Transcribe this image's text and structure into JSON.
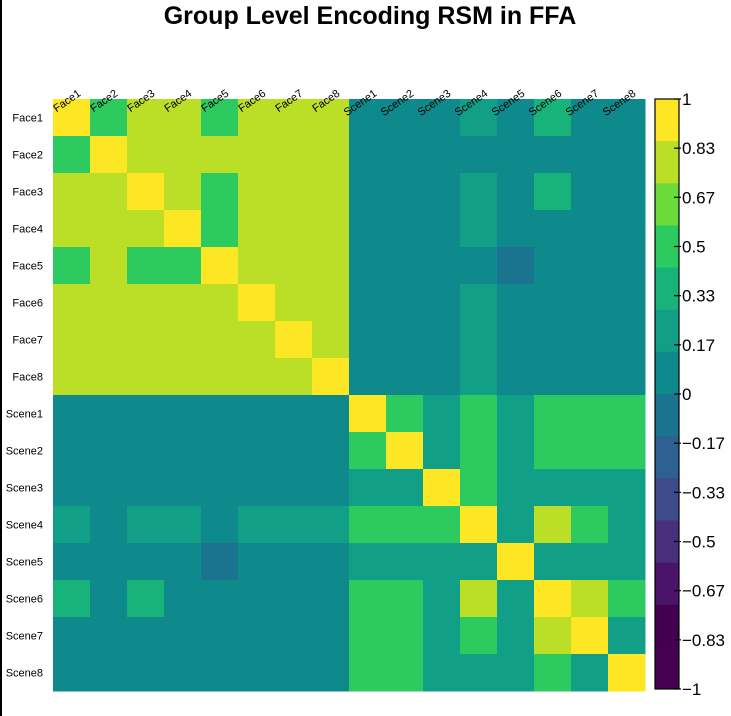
{
  "chart_data": {
    "type": "heatmap",
    "title": "Group Level Encoding RSM in FFA",
    "labels": [
      "Face1",
      "Face2",
      "Face3",
      "Face4",
      "Face5",
      "Face6",
      "Face7",
      "Face8",
      "Scene1",
      "Scene2",
      "Scene3",
      "Scene4",
      "Scene5",
      "Scene6",
      "Scene7",
      "Scene8"
    ],
    "matrix": [
      [
        1.0,
        0.55,
        0.75,
        0.75,
        0.55,
        0.75,
        0.75,
        0.75,
        0.08,
        0.05,
        0.1,
        0.25,
        0.08,
        0.3,
        0.05,
        0.1
      ],
      [
        0.55,
        1.0,
        0.75,
        0.75,
        0.75,
        0.75,
        0.75,
        0.75,
        0.08,
        0.05,
        0.05,
        0.1,
        0.03,
        0.1,
        0.1,
        0.05
      ],
      [
        0.75,
        0.75,
        1.0,
        0.75,
        0.55,
        0.75,
        0.75,
        0.75,
        0.08,
        0.05,
        0.1,
        0.25,
        0.03,
        0.3,
        0.1,
        0.05
      ],
      [
        0.75,
        0.75,
        0.75,
        1.0,
        0.55,
        0.75,
        0.75,
        0.75,
        0.1,
        0.1,
        0.05,
        0.25,
        0.05,
        0.1,
        0.1,
        0.1
      ],
      [
        0.55,
        0.75,
        0.55,
        0.55,
        1.0,
        0.75,
        0.75,
        0.75,
        0.08,
        0.05,
        0.05,
        0.1,
        -0.1,
        0.08,
        0.1,
        0.05
      ],
      [
        0.75,
        0.75,
        0.75,
        0.75,
        0.75,
        1.0,
        0.75,
        0.75,
        0.08,
        0.05,
        0.05,
        0.25,
        0.03,
        0.08,
        0.1,
        0.05
      ],
      [
        0.75,
        0.75,
        0.75,
        0.75,
        0.75,
        0.75,
        1.0,
        0.75,
        0.05,
        0.05,
        0.05,
        0.25,
        0.03,
        0.08,
        0.05,
        0.05
      ],
      [
        0.75,
        0.75,
        0.75,
        0.75,
        0.75,
        0.75,
        0.75,
        1.0,
        0.08,
        0.05,
        0.05,
        0.25,
        0.03,
        0.1,
        0.1,
        0.05
      ],
      [
        0.1,
        0.1,
        0.1,
        0.1,
        0.1,
        0.1,
        0.05,
        0.1,
        1.0,
        0.55,
        0.25,
        0.55,
        0.25,
        0.55,
        0.55,
        0.55
      ],
      [
        0.05,
        0.05,
        0.05,
        0.1,
        0.05,
        0.05,
        0.05,
        0.05,
        0.55,
        1.0,
        0.25,
        0.55,
        0.25,
        0.55,
        0.55,
        0.55
      ],
      [
        0.1,
        0.05,
        0.1,
        0.05,
        0.05,
        0.05,
        0.05,
        0.05,
        0.25,
        0.25,
        1.0,
        0.55,
        0.25,
        0.25,
        0.25,
        0.25
      ],
      [
        0.25,
        0.1,
        0.25,
        0.25,
        0.1,
        0.25,
        0.25,
        0.25,
        0.55,
        0.55,
        0.55,
        1.0,
        0.25,
        0.75,
        0.55,
        0.25
      ],
      [
        0.1,
        0.05,
        0.05,
        0.05,
        -0.1,
        0.05,
        0.05,
        0.05,
        0.25,
        0.25,
        0.25,
        0.25,
        1.0,
        0.25,
        0.25,
        0.25
      ],
      [
        0.3,
        0.1,
        0.3,
        0.1,
        0.1,
        0.1,
        0.1,
        0.1,
        0.55,
        0.55,
        0.25,
        0.75,
        0.25,
        1.0,
        0.75,
        0.55
      ],
      [
        0.05,
        0.1,
        0.1,
        0.1,
        0.1,
        0.1,
        0.05,
        0.1,
        0.55,
        0.55,
        0.25,
        0.55,
        0.25,
        0.75,
        1.0,
        0.25
      ],
      [
        0.1,
        0.05,
        0.05,
        0.1,
        0.05,
        0.05,
        0.05,
        0.05,
        0.55,
        0.55,
        0.25,
        0.25,
        0.25,
        0.55,
        0.25,
        1.0
      ]
    ],
    "value_range": [
      -1,
      1
    ],
    "colorbar": {
      "ticks": [
        "1",
        "0.83",
        "0.67",
        "0.5",
        "0.33",
        "0.17",
        "0",
        "-0.17",
        "-0.33",
        "-0.5",
        "-0.67",
        "-0.83",
        "-1"
      ],
      "palette": [
        "#FDE725",
        "#BBDF27",
        "#6ADB3A",
        "#2DCA60",
        "#18B37A",
        "#129F87",
        "#0F8A8C",
        "#1A7490",
        "#2E6191",
        "#3E4A8A",
        "#48307D",
        "#4A146A",
        "#430050",
        "#440154"
      ],
      "placement": "right"
    }
  }
}
